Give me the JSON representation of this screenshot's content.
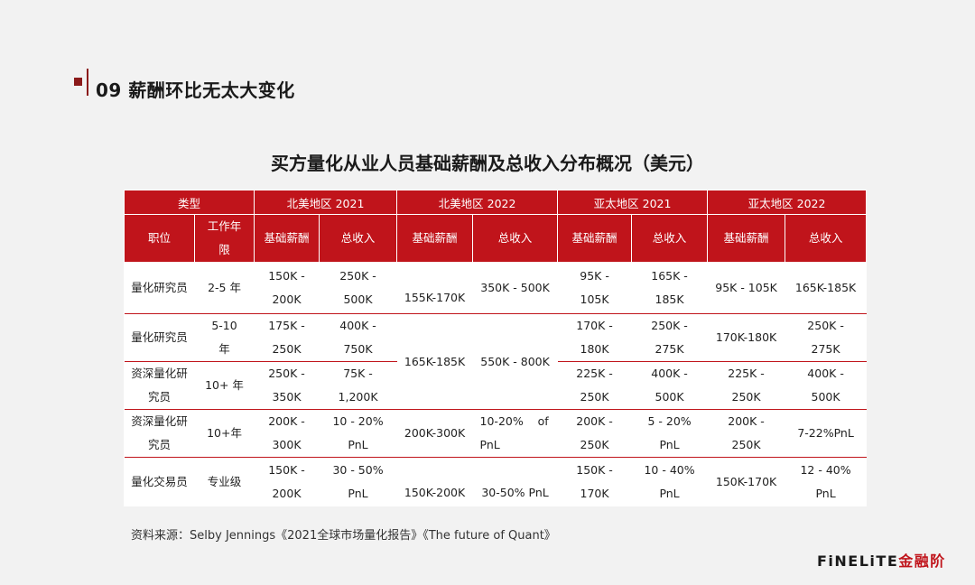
{
  "section": {
    "title": "09 薪酬环比无太大变化"
  },
  "table": {
    "title": "买方量化从业人员基础薪酬及总收入分布概况（美元）",
    "header_row1": [
      "类型",
      "北美地区 2021",
      "北美地区 2022",
      "亚太地区 2021",
      "亚太地区 2022"
    ],
    "header_row2": [
      "职位",
      "工作年限",
      "基础薪酬",
      "总收入",
      "基础薪酬",
      "总收入",
      "基础薪酬",
      "总收入",
      "基础薪酬",
      "总收入"
    ],
    "rows": [
      [
        "量化研究员",
        "2-5 年",
        "150K - 200K",
        "250K - 500K",
        "155K-170K",
        "350K - 500K",
        "95K - 105K",
        "165K - 185K",
        "95K - 105K",
        "165K-185K"
      ],
      [
        "量化研究员",
        "5-10 年",
        "175K - 250K",
        "400K - 750K",
        "165K-185K",
        "550K - 800K",
        "170K - 180K",
        "250K - 275K",
        "170K-180K",
        "250K - 275K"
      ],
      [
        "资深量化研究员",
        "10+ 年",
        "250K - 350K",
        "75K - 1,200K",
        "",
        "",
        "225K - 250K",
        "400K - 500K",
        "225K - 250K",
        "400K - 500K"
      ],
      [
        "资深量化研究员",
        "10+年",
        "200K - 300K",
        "10 - 20% PnL",
        "200K-300K",
        "10-20%    of PnL",
        "200K - 250K",
        "5 - 20% PnL",
        "200K - 250K",
        "7-22%PnL"
      ],
      [
        "量化交易员",
        "专业级",
        "150K - 200K",
        "30 - 50% PnL",
        "150K-200K",
        "30-50% PnL",
        "150K - 170K",
        "10 - 40% PnL",
        "150K-170K",
        "12 - 40% PnL"
      ]
    ]
  },
  "source": "资料来源：Selby Jennings《2021全球市场量化报告》《The future of Quant》",
  "logo": {
    "text_main": "FiNELiTE",
    "text_accent": "金融阶"
  }
}
